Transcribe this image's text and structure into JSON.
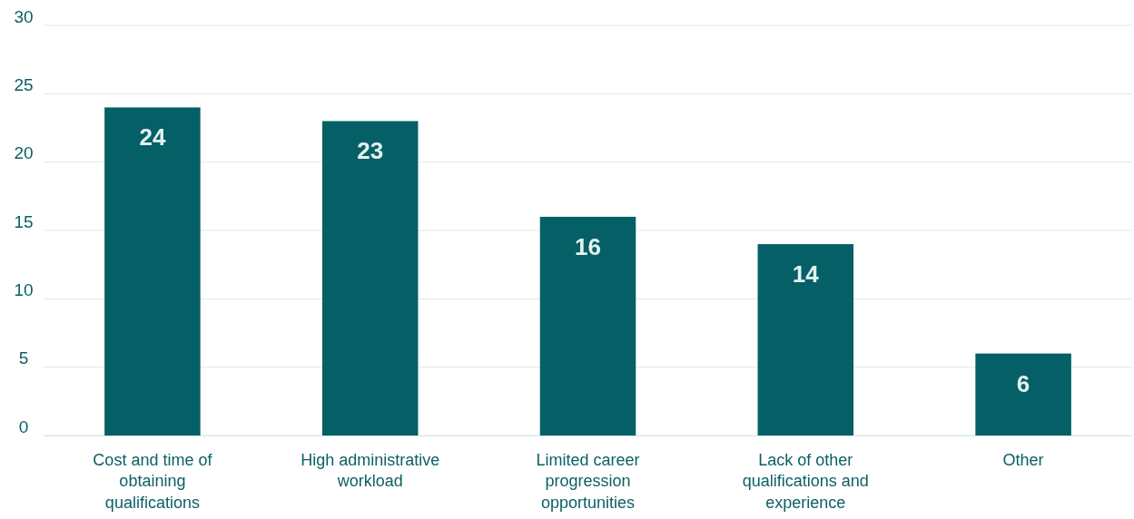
{
  "chart_data": {
    "type": "bar",
    "categories": [
      "Cost and time of obtaining qualifications",
      "High administrative workload",
      "Limited career progression opportunities",
      "Lack of other qualifications and experience",
      "Other"
    ],
    "values": [
      24,
      23,
      16,
      14,
      6
    ],
    "color": "#055f66",
    "ylim": [
      0,
      30
    ],
    "yticks": [
      0,
      5,
      10,
      15,
      20,
      25,
      30
    ],
    "grid": "y",
    "data_labels": true
  }
}
